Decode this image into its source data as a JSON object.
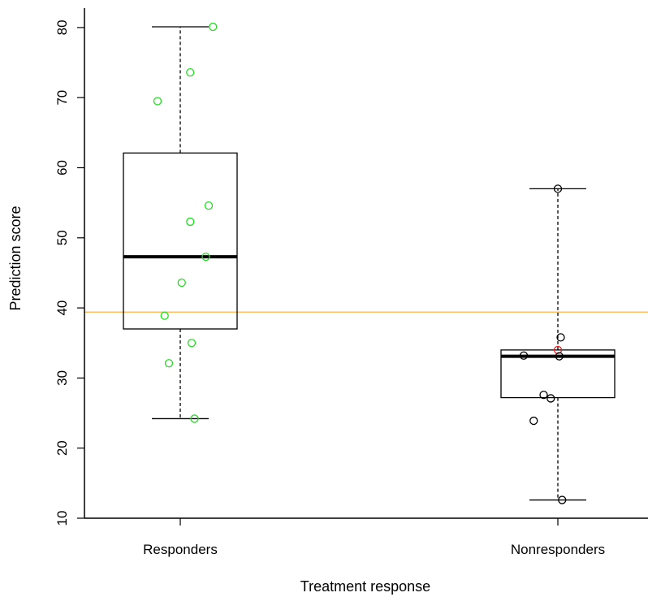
{
  "chart_data": {
    "type": "box",
    "title": "",
    "xlabel": "Treatment response",
    "ylabel": "Prediction score",
    "ylim": [
      10,
      82
    ],
    "yticks": [
      10,
      20,
      30,
      40,
      50,
      60,
      70,
      80
    ],
    "reference_line": {
      "y": 39.4,
      "color": "#ffbf60"
    },
    "categories": [
      "Responders",
      "Nonresponders"
    ],
    "boxes": [
      {
        "category": "Responders",
        "whisker_low": 24.2,
        "q1": 37.0,
        "median": 47.3,
        "q3": 62.1,
        "whisker_high": 80.1,
        "point_color": "#22dd22",
        "points": [
          {
            "jitter": 0.23,
            "y": 80.1
          },
          {
            "jitter": 0.07,
            "y": 73.6
          },
          {
            "jitter": -0.16,
            "y": 69.5
          },
          {
            "jitter": 0.2,
            "y": 54.6
          },
          {
            "jitter": 0.07,
            "y": 52.3
          },
          {
            "jitter": 0.18,
            "y": 47.3
          },
          {
            "jitter": 0.01,
            "y": 43.6
          },
          {
            "jitter": -0.11,
            "y": 38.9
          },
          {
            "jitter": 0.08,
            "y": 35.0
          },
          {
            "jitter": -0.08,
            "y": 32.1
          },
          {
            "jitter": 0.1,
            "y": 24.2
          }
        ]
      },
      {
        "category": "Nonresponders",
        "whisker_low": 12.6,
        "q1": 27.2,
        "median": 33.1,
        "q3": 34.0,
        "whisker_high": 57.0,
        "point_color": "#000000",
        "points": [
          {
            "jitter": 0.0,
            "y": 57.0
          },
          {
            "jitter": 0.02,
            "y": 35.8
          },
          {
            "jitter": 0.0,
            "y": 34.0,
            "color": "#dd2222"
          },
          {
            "jitter": -0.24,
            "y": 33.2
          },
          {
            "jitter": 0.01,
            "y": 33.1
          },
          {
            "jitter": -0.1,
            "y": 27.6
          },
          {
            "jitter": -0.05,
            "y": 27.1
          },
          {
            "jitter": -0.17,
            "y": 23.9
          },
          {
            "jitter": 0.03,
            "y": 12.6
          }
        ]
      }
    ]
  }
}
